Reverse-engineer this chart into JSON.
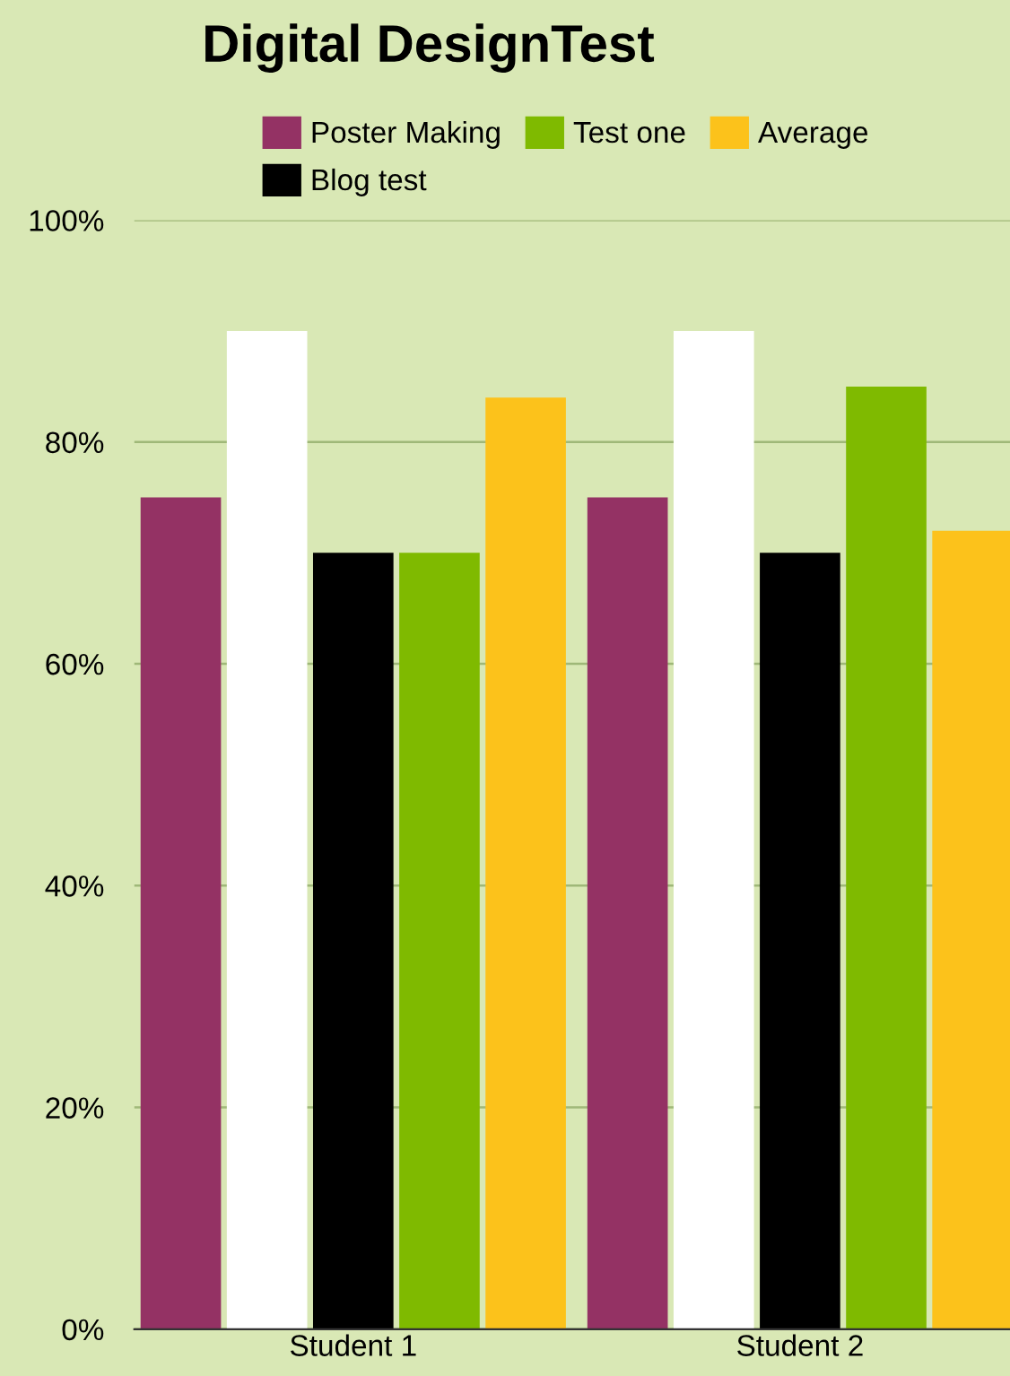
{
  "chart_data": {
    "type": "bar",
    "title": "Digital DesignTest",
    "categories": [
      "Student 1",
      "Student 2"
    ],
    "series": [
      {
        "name": "Poster Making",
        "color": "#943264",
        "values": [
          75,
          75
        ]
      },
      {
        "color": "#ffffff",
        "values": [
          90,
          90
        ]
      },
      {
        "name": "Blog test",
        "color": "#000000",
        "values": [
          70,
          70
        ]
      },
      {
        "name": "Test one",
        "color": "#7fba00",
        "values": [
          70,
          85
        ]
      },
      {
        "name": "Average",
        "color": "#fcc21b",
        "values": [
          84,
          72
        ]
      }
    ],
    "ylim": [
      0,
      100
    ],
    "yticks": [
      {
        "value": 0,
        "label": "0%"
      },
      {
        "value": 20,
        "label": "20%"
      },
      {
        "value": 40,
        "label": "40%"
      },
      {
        "value": 60,
        "label": "60%"
      },
      {
        "value": 80,
        "label": "80%"
      },
      {
        "value": 100,
        "label": "100%"
      }
    ],
    "grid": "y",
    "legend": "top"
  }
}
